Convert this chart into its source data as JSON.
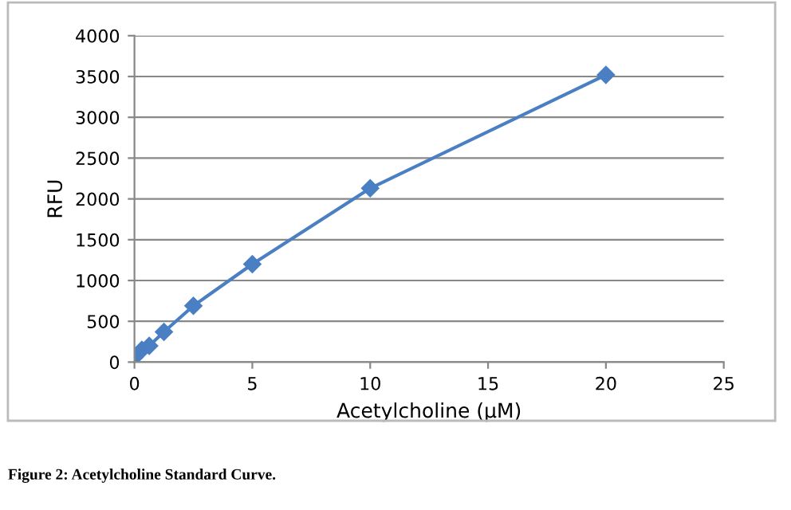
{
  "chart_data": {
    "type": "line",
    "xlabel": "Acetylcholine (µM)",
    "ylabel": "RFU",
    "x": [
      0,
      0.3125,
      0.625,
      1.25,
      2.5,
      5,
      10,
      20
    ],
    "series": [
      {
        "color": "#4a7fc4",
        "values": [
          60,
          150,
          200,
          370,
          690,
          1200,
          2130,
          3520
        ]
      }
    ],
    "xlim": [
      0,
      25
    ],
    "xticks": [
      0,
      5,
      10,
      15,
      20,
      25
    ],
    "ylim": [
      0,
      4000
    ],
    "yticks": [
      0,
      500,
      1000,
      1500,
      2000,
      2500,
      3000,
      3500,
      4000
    ],
    "grid": "y",
    "marker": "diamond",
    "line_style": "solid",
    "annotations": [
      "Figure 2: Acetylcholine Standard Curve."
    ]
  }
}
